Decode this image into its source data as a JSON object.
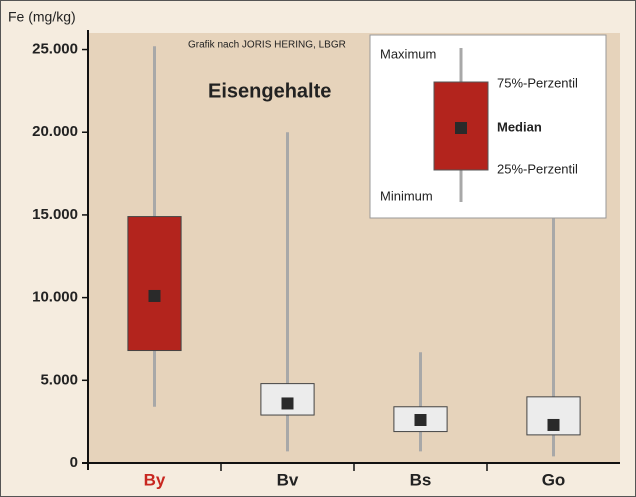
{
  "chart_data": {
    "type": "box",
    "title": "Eisengehalte",
    "y_label": "Fe (mg/kg)",
    "credit": "Grafik nach JORIS HERING, LBGR",
    "categories": [
      "By",
      "Bv",
      "Bs",
      "Go"
    ],
    "min": [
      3400,
      700,
      700,
      400
    ],
    "q1": [
      6800,
      2900,
      1900,
      1700
    ],
    "median": [
      10100,
      3600,
      2600,
      2300
    ],
    "q3": [
      14900,
      4800,
      3400,
      4000
    ],
    "max": [
      25200,
      20000,
      6700,
      16000
    ],
    "colors": [
      "#b3241d",
      "#ececec",
      "#ececec",
      "#ececec"
    ],
    "label_colors": [
      "#c8261f",
      "#222222",
      "#222222",
      "#222222"
    ],
    "whisker_color": "#a8a8a8",
    "median_color": "#2a2a2a",
    "ylim": [
      0,
      26000
    ],
    "yticks": [
      0,
      {
        "value": 5000,
        "label": "5.000"
      },
      {
        "value": 10000,
        "label": "10.000"
      },
      {
        "value": 15000,
        "label": "15.000"
      },
      {
        "value": 20000,
        "label": "20.000"
      },
      {
        "value": 25000,
        "label": "25.000"
      }
    ],
    "legend": {
      "max": "Maximum",
      "q3": "75%-Perzentil",
      "median": "Median",
      "q1": "25%-Perzentil",
      "min": "Minimum"
    }
  }
}
